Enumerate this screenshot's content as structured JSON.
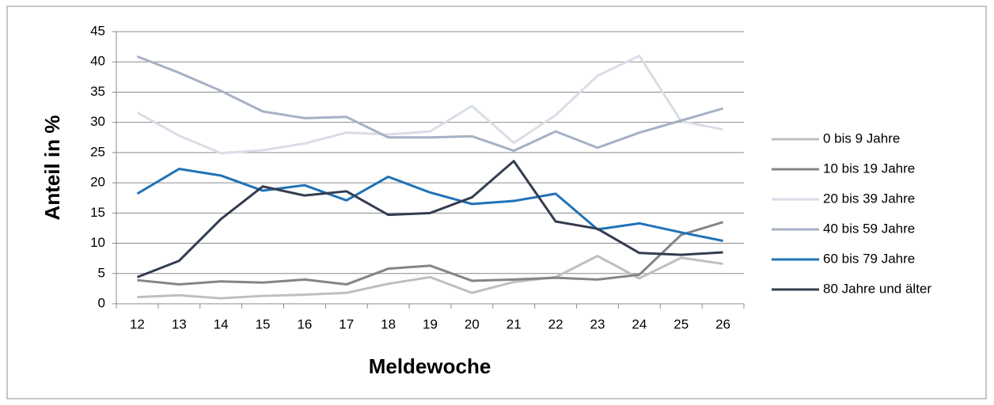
{
  "chart_data": {
    "type": "line",
    "x_label": "Meldewoche",
    "y_label": "Anteil in %",
    "categories": [
      "12",
      "13",
      "14",
      "15",
      "16",
      "17",
      "18",
      "19",
      "20",
      "21",
      "22",
      "23",
      "24",
      "25",
      "26"
    ],
    "ylim": [
      0,
      45
    ],
    "yticks": [
      0,
      5,
      10,
      15,
      20,
      25,
      30,
      35,
      40,
      45
    ],
    "grid": true,
    "legend": "right",
    "series": [
      {
        "name": "0 bis 9 Jahre",
        "color": "#bfbfbf",
        "values": [
          1.1,
          1.4,
          0.9,
          1.3,
          1.5,
          1.8,
          3.3,
          4.4,
          1.8,
          3.6,
          4.4,
          7.9,
          4.2,
          7.6,
          6.6
        ]
      },
      {
        "name": "10 bis 19 Jahre",
        "color": "#858585",
        "values": [
          3.9,
          3.2,
          3.7,
          3.5,
          4.0,
          3.2,
          5.8,
          6.3,
          3.8,
          4.0,
          4.3,
          4.0,
          4.8,
          11.4,
          13.5
        ]
      },
      {
        "name": "20 bis 39 Jahre",
        "color": "#d9dde6",
        "values": [
          31.6,
          27.8,
          24.9,
          25.4,
          26.5,
          28.3,
          28.0,
          28.5,
          32.7,
          26.6,
          31.2,
          37.7,
          41.0,
          30.2,
          28.8
        ]
      },
      {
        "name": "40 bis 59 Jahre",
        "color": "#a6b1c4",
        "values": [
          40.9,
          38.2,
          35.2,
          31.8,
          30.7,
          30.9,
          27.5,
          27.5,
          27.7,
          25.3,
          28.5,
          25.8,
          28.3,
          30.3,
          32.3
        ]
      },
      {
        "name": "60 bis 79 Jahre",
        "color": "#1f72b8",
        "values": [
          18.2,
          22.3,
          21.2,
          18.7,
          19.6,
          17.1,
          21.0,
          18.4,
          16.5,
          17.0,
          18.2,
          12.3,
          13.3,
          11.8,
          10.4
        ]
      },
      {
        "name": "80 Jahre und älter",
        "color": "#333d4f",
        "values": [
          4.4,
          7.1,
          14.0,
          19.4,
          17.9,
          18.6,
          14.7,
          15.0,
          17.6,
          23.6,
          13.6,
          12.4,
          8.4,
          8.1,
          8.5
        ]
      }
    ]
  }
}
